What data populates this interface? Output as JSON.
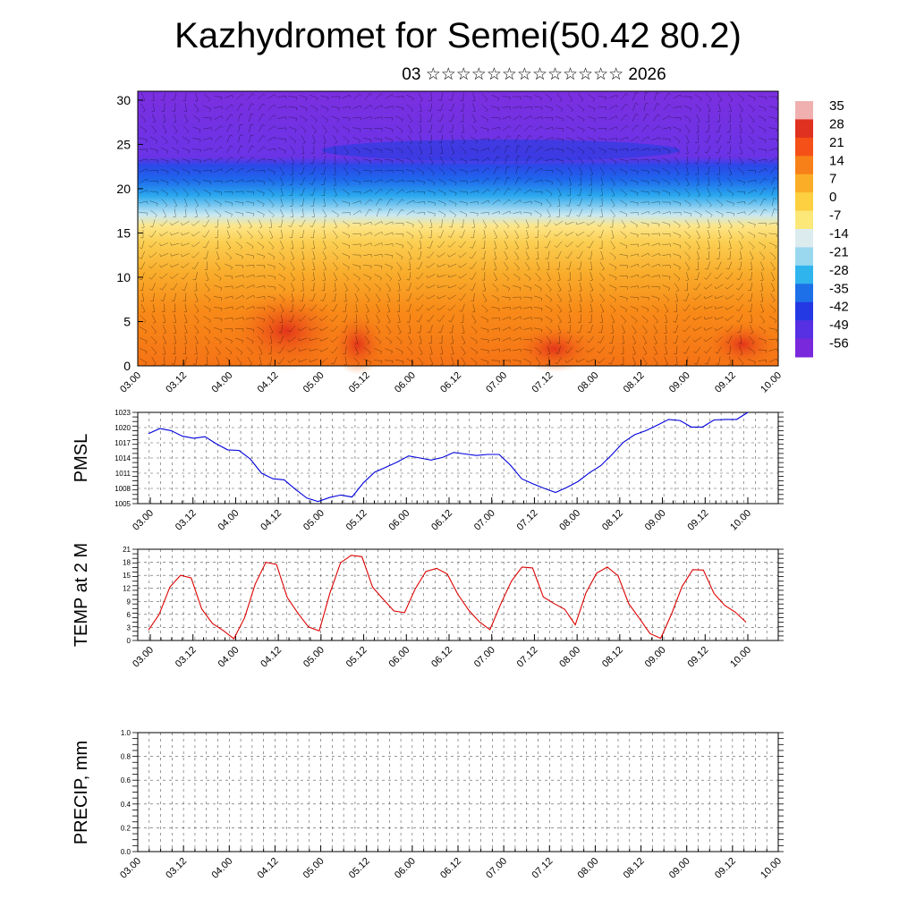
{
  "header": {
    "title": "Kazhydromet for Semei(50.42 80.2)",
    "subtitle": "03 ☆☆☆☆☆☆☆☆☆☆☆☆☆ 2026"
  },
  "colors": {
    "pmsl_line": "#0000dd",
    "temp_line": "#dd0000",
    "precip_line": "#000000"
  },
  "chart_data": [
    {
      "id": "cross-section",
      "type": "heatmap",
      "title": "",
      "x_tick_labels": [
        "03.00",
        "03.12",
        "04.00",
        "04.12",
        "05.00",
        "05.12",
        "06.00",
        "06.12",
        "07.00",
        "07.12",
        "08.00",
        "08.12",
        "09.00",
        "09.12",
        "10.00"
      ],
      "y_ticks": [
        0,
        5,
        10,
        15,
        20,
        25,
        30
      ],
      "ylim": [
        0,
        31
      ],
      "colorbar_labels": [
        "35",
        "28",
        "21",
        "14",
        "7",
        "0",
        "-7",
        "-14",
        "-21",
        "-28",
        "-35",
        "-42",
        "-49",
        "-56"
      ],
      "colorbar_colors": [
        "#f0b0b0",
        "#e03020",
        "#f55018",
        "#f88018",
        "#fbad28",
        "#fcd040",
        "#fce878",
        "#dcecee",
        "#9ad8f0",
        "#30b4ee",
        "#1e70e8",
        "#2438e4",
        "#5830e4",
        "#7a28dc"
      ],
      "notes": "temperature (°C) height–time section with wind barbs overlay"
    },
    {
      "id": "pmsl",
      "type": "line",
      "ylabel": "PMSL",
      "y_ticks": [
        1005,
        1008,
        1011,
        1014,
        1017,
        1020,
        1023
      ],
      "ylim": [
        1005,
        1023
      ],
      "x_tick_labels": [
        "03.00",
        "03.12",
        "04.00",
        "04.12",
        "05.00",
        "05.12",
        "06.00",
        "06.12",
        "07.00",
        "07.12",
        "08.00",
        "08.12",
        "09.00",
        "09.12",
        "10.00"
      ],
      "values": [
        1018.8,
        1019.8,
        1019.4,
        1018.3,
        1017.9,
        1018.2,
        1016.8,
        1015.6,
        1015.5,
        1013.8,
        1011.0,
        1009.9,
        1009.7,
        1007.8,
        1006.1,
        1005.4,
        1006.2,
        1006.7,
        1006.3,
        1009.1,
        1011.2,
        1012.2,
        1013.2,
        1014.4,
        1014.0,
        1013.6,
        1014.1,
        1015.1,
        1014.8,
        1014.5,
        1014.7,
        1014.7,
        1012.6,
        1009.9,
        1008.9,
        1008.0,
        1007.2,
        1008.2,
        1009.4,
        1011.1,
        1012.5,
        1014.7,
        1017.1,
        1018.6,
        1019.4,
        1020.5,
        1021.6,
        1021.4,
        1020.1,
        1020.1,
        1021.5,
        1021.6,
        1021.6,
        1023.0
      ],
      "grid": true
    },
    {
      "id": "temp",
      "type": "line",
      "ylabel": "TEMP at 2 M",
      "y_ticks": [
        0,
        3,
        6,
        9,
        12,
        15,
        18,
        21
      ],
      "ylim": [
        0,
        21
      ],
      "x_tick_labels": [
        "03.00",
        "03.12",
        "04.00",
        "04.12",
        "05.00",
        "05.12",
        "06.00",
        "06.12",
        "07.00",
        "07.12",
        "08.00",
        "08.12",
        "09.00",
        "09.12",
        "10.00"
      ],
      "values": [
        2.4,
        6.0,
        12.3,
        15.0,
        14.4,
        7.2,
        3.9,
        2.3,
        0.4,
        5.2,
        13.0,
        18.0,
        17.5,
        9.9,
        6.3,
        3.1,
        2.2,
        10.9,
        17.9,
        19.6,
        19.3,
        12.3,
        9.5,
        6.8,
        6.4,
        11.9,
        15.9,
        16.6,
        15.3,
        10.6,
        7.0,
        4.3,
        2.5,
        8.3,
        13.6,
        16.9,
        16.7,
        10.0,
        8.5,
        7.2,
        3.6,
        11.0,
        15.5,
        16.9,
        14.9,
        8.5,
        5.1,
        1.6,
        0.5,
        6.0,
        12.4,
        16.3,
        16.2,
        10.8,
        8.1,
        6.5,
        4.2
      ],
      "grid": true
    },
    {
      "id": "precip",
      "type": "line",
      "ylabel": "PRECIP, mm",
      "y_ticks": [
        "0.0",
        "0.2",
        "0.4",
        "0.6",
        "0.8",
        "1.0"
      ],
      "ylim": [
        0,
        1
      ],
      "x_tick_labels": [
        "03.00",
        "03.12",
        "04.00",
        "04.12",
        "05.00",
        "05.12",
        "06.00",
        "06.12",
        "07.00",
        "07.12",
        "08.00",
        "08.12",
        "09.00",
        "09.12",
        "10.00"
      ],
      "values": [
        0,
        0,
        0,
        0,
        0,
        0,
        0,
        0,
        0,
        0,
        0,
        0,
        0,
        0,
        0
      ],
      "grid": true
    }
  ]
}
